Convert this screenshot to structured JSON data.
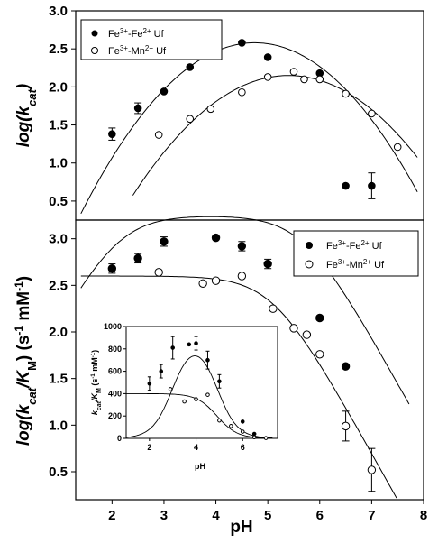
{
  "chart_data": [
    {
      "type": "scatter",
      "panel": "top",
      "ylabel": "log(kcat)",
      "ylim": [
        0.25,
        3.0
      ],
      "xlim": [
        1.3,
        8.0
      ],
      "yticks": [
        "3.0",
        "2.5",
        "2.0",
        "1.5",
        "1.0",
        "0.5"
      ],
      "yticks_values": [
        3.0,
        2.5,
        2.0,
        1.5,
        1.0,
        0.5
      ],
      "legend": {
        "placement": "top-left",
        "entries": [
          "Fe3+-Fe2+ Uf",
          "Fe3+-Mn2+ Uf"
        ]
      },
      "series": [
        {
          "name": "Fe3+-Fe2+ Uf",
          "marker": "filled-circle",
          "x": [
            2.0,
            2.5,
            3.0,
            3.5,
            4.0,
            4.5,
            5.0,
            6.0,
            6.5,
            7.0
          ],
          "y": [
            1.38,
            1.72,
            1.94,
            2.26,
            2.45,
            2.58,
            2.39,
            2.18,
            0.7,
            0.7
          ],
          "err": [
            0.08,
            0.07,
            0,
            0,
            0,
            0,
            0,
            0,
            0,
            0.17
          ]
        },
        {
          "name": "Fe3+-Mn2+ Uf",
          "marker": "open-circle",
          "x": [
            2.9,
            3.5,
            3.9,
            4.5,
            5.0,
            5.5,
            5.7,
            6.0,
            6.5,
            7.0,
            7.5
          ],
          "y": [
            1.37,
            1.58,
            1.71,
            1.93,
            2.13,
            2.2,
            2.1,
            2.1,
            1.91,
            1.65,
            1.21
          ]
        }
      ],
      "fits": [
        {
          "series": "Fe3+-Fe2+ Uf",
          "x_range": [
            1.4,
            7.9
          ],
          "peak_x": 4.75,
          "peak_y": 2.58
        },
        {
          "series": "Fe3+-Mn2+ Uf",
          "x_range": [
            2.4,
            7.9
          ],
          "peak_x": 5.4,
          "peak_y": 2.15
        }
      ]
    },
    {
      "type": "scatter",
      "panel": "bottom",
      "xlabel": "pH",
      "ylabel": "log(kcat/KM) (s-1 mM-1)",
      "xlim": [
        1.3,
        8.0
      ],
      "ylim": [
        0.2,
        3.2
      ],
      "xticks": [
        "2",
        "3",
        "4",
        "5",
        "6",
        "7",
        "8"
      ],
      "yticks": [
        "3.0",
        "2.5",
        "2.0",
        "1.5",
        "1.0",
        "0.5"
      ],
      "yticks_values": [
        3.0,
        2.5,
        2.0,
        1.5,
        1.0,
        0.5
      ],
      "legend": {
        "placement": "top-right",
        "entries": [
          "Fe3+-Fe2+ Uf",
          "Fe3+-Mn2+ Uf"
        ]
      },
      "series": [
        {
          "name": "Fe3+-Fe2+ Uf",
          "marker": "filled-circle",
          "x": [
            2.0,
            2.5,
            3.0,
            4.0,
            4.5,
            5.0,
            6.0,
            6.5
          ],
          "y": [
            2.68,
            2.79,
            2.97,
            3.01,
            2.92,
            2.73,
            2.15,
            1.63
          ],
          "err": [
            0.05,
            0.05,
            0.05,
            0,
            0.05,
            0.05,
            0,
            0
          ]
        },
        {
          "name": "Fe3+-Mn2+ Uf",
          "marker": "open-circle",
          "x": [
            2.9,
            3.75,
            4.0,
            4.5,
            5.1,
            5.5,
            5.75,
            6.0,
            6.5,
            7.0
          ],
          "y": [
            2.64,
            2.52,
            2.55,
            2.6,
            2.25,
            2.04,
            1.97,
            1.76,
            0.99,
            0.52
          ],
          "err": [
            0,
            0,
            0,
            0,
            0,
            0,
            0,
            0,
            0.16,
            0.23
          ]
        }
      ],
      "fits": [
        {
          "series": "Fe3+-Fe2+ Uf",
          "x_range": [
            1.4,
            7.75
          ],
          "plateau": 3.0
        },
        {
          "series": "Fe3+-Mn2+ Uf",
          "x_range": [
            1.4,
            7.5
          ],
          "plateau": 2.6
        }
      ]
    },
    {
      "type": "scatter",
      "panel": "inset",
      "xlabel": "pH",
      "ylabel": "kcat/KM (s-1 mM-1)",
      "xlim": [
        1.0,
        7.5
      ],
      "ylim": [
        0,
        1000
      ],
      "xticks": [
        "2",
        "4",
        "6"
      ],
      "yticks": [
        "0",
        "200",
        "400",
        "600",
        "800",
        "1000"
      ],
      "series": [
        {
          "name": "Fe3+-Fe2+ Uf",
          "marker": "filled-circle",
          "x": [
            2.0,
            2.5,
            3.0,
            3.7,
            4.0,
            4.5,
            5.0,
            6.0,
            6.5
          ],
          "y": [
            490,
            600,
            810,
            840,
            850,
            700,
            510,
            150,
            40
          ],
          "err": [
            60,
            60,
            100,
            0,
            60,
            80,
            60,
            0,
            0
          ]
        },
        {
          "name": "Fe3+-Mn2+ Uf",
          "marker": "open-circle",
          "x": [
            2.9,
            3.5,
            4.0,
            4.5,
            5.0,
            5.5,
            6.0,
            6.5,
            7.0
          ],
          "y": [
            440,
            330,
            350,
            390,
            160,
            110,
            60,
            10,
            3
          ]
        }
      ]
    }
  ]
}
